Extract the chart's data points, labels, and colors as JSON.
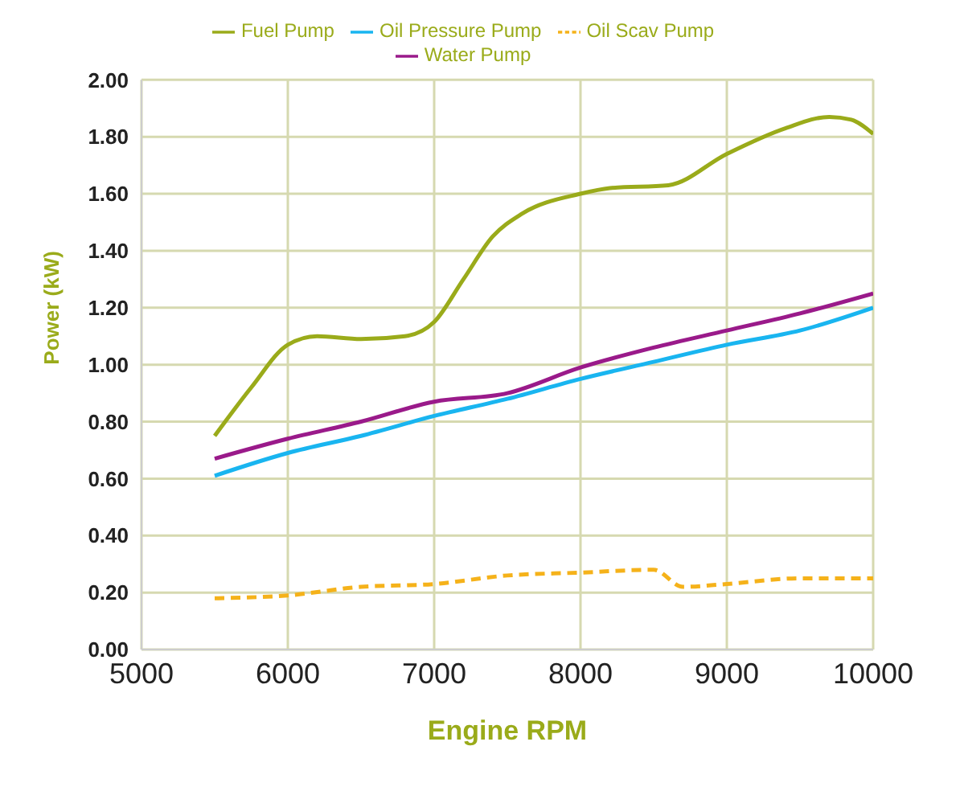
{
  "chart_data": {
    "type": "line",
    "xlabel": "Engine RPM",
    "ylabel": "Power (kW)",
    "xlim": [
      5000,
      10000
    ],
    "xticks": [
      5000,
      6000,
      7000,
      8000,
      9000,
      10000
    ],
    "ylim": [
      0,
      2
    ],
    "yticks": [
      {
        "value": 0,
        "label": "0.00"
      },
      {
        "value": 0.2,
        "label": "0.20"
      },
      {
        "value": 0.4,
        "label": "0.40"
      },
      {
        "value": 0.6,
        "label": "0.60"
      },
      {
        "value": 0.8,
        "label": "0.80"
      },
      {
        "value": 1,
        "label": "1.00"
      },
      {
        "value": 1.2,
        "label": "1.20"
      },
      {
        "value": 1.4,
        "label": "1.40"
      },
      {
        "value": 1.6,
        "label": "1.60"
      },
      {
        "value": 1.8,
        "label": "1.80"
      },
      {
        "value": 2,
        "label": "2.00"
      }
    ],
    "grid": true,
    "legend": "top",
    "marker": "none",
    "series": [
      {
        "name": "Fuel Pump",
        "color": "#9aab1a",
        "x": [
          5500,
          5750,
          6000,
          6200,
          6500,
          6800,
          7000,
          7200,
          7400,
          7600,
          8000,
          8200,
          8600,
          9000,
          9400,
          9700,
          9850,
          10000
        ],
        "values": [
          0.75,
          0.92,
          1.07,
          1.1,
          1.09,
          1.1,
          1.15,
          1.3,
          1.45,
          1.53,
          1.6,
          1.62,
          1.63,
          1.74,
          1.83,
          1.87,
          1.86,
          1.81
        ]
      },
      {
        "name": "Water Pump",
        "color": "#9a1a8a",
        "x": [
          5500,
          6000,
          6500,
          7000,
          7500,
          8000,
          8500,
          9000,
          9500,
          10000
        ],
        "values": [
          0.67,
          0.74,
          0.8,
          0.87,
          0.9,
          0.99,
          1.06,
          1.12,
          1.18,
          1.25
        ]
      },
      {
        "name": "Oil Pressure Pump",
        "color": "#19b5f0",
        "x": [
          5500,
          6000,
          6500,
          7000,
          7500,
          8000,
          8500,
          9000,
          9500,
          10000
        ],
        "values": [
          0.61,
          0.69,
          0.75,
          0.82,
          0.88,
          0.95,
          1.01,
          1.07,
          1.12,
          1.2
        ]
      },
      {
        "name": "Oil Scav Pump",
        "color": "#f5b21a",
        "line_style": "dashed",
        "x": [
          5500,
          6000,
          6500,
          7000,
          7500,
          8000,
          8500,
          8700,
          9000,
          9500,
          10000
        ],
        "values": [
          0.18,
          0.19,
          0.22,
          0.23,
          0.26,
          0.27,
          0.28,
          0.22,
          0.23,
          0.25,
          0.25
        ]
      }
    ]
  }
}
